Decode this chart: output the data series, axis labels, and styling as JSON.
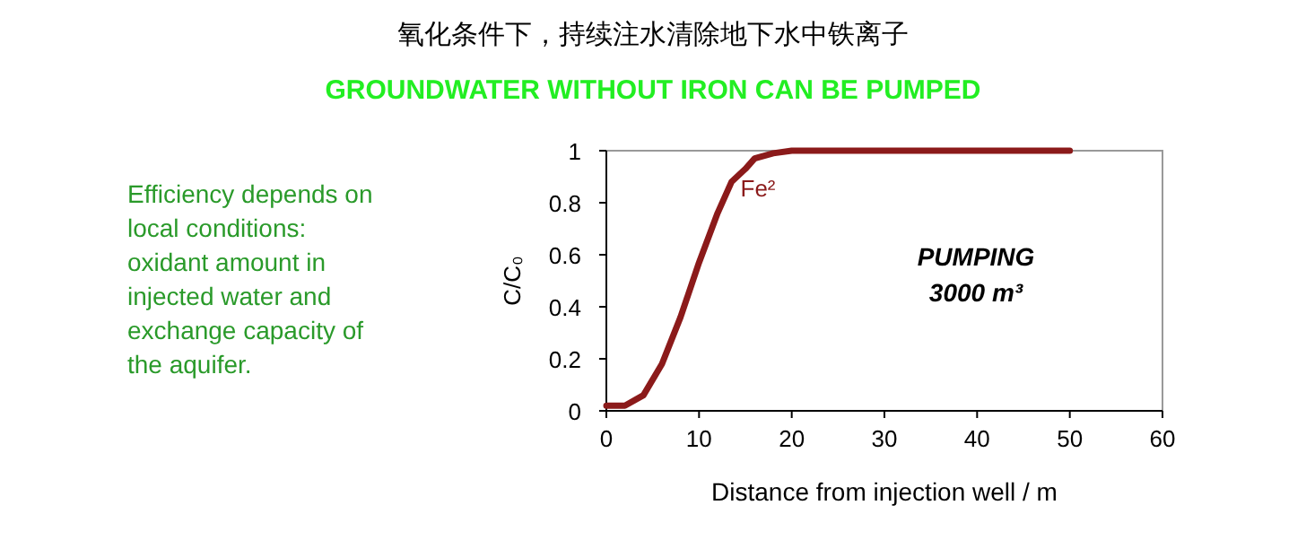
{
  "chart_data": {
    "type": "line",
    "title": "氧化条件下，持续注水清除地下水中铁离子",
    "subtitle": "GROUNDWATER WITHOUT IRON CAN BE PUMPED",
    "xlabel": "Distance from injection well / m",
    "ylabel": "C/C₀",
    "x": [
      0,
      2,
      4,
      6,
      8,
      10,
      12,
      13.5,
      15,
      16,
      18,
      20,
      30,
      40,
      50
    ],
    "series": [
      {
        "color": "#8b1a1a",
        "values": [
          0.02,
          0.02,
          0.06,
          0.18,
          0.36,
          0.57,
          0.76,
          0.88,
          0.93,
          0.97,
          0.99,
          1,
          1,
          1,
          1
        ]
      }
    ],
    "xlim": [
      0,
      60
    ],
    "xticks": [
      0,
      10,
      20,
      30,
      40,
      50,
      60
    ],
    "ylim": [
      0,
      1
    ],
    "yticks": [
      0,
      0.2,
      0.4,
      0.6,
      0.8,
      1
    ],
    "grid": false,
    "marker": "none",
    "line_style": "solid",
    "annotations": [
      {
        "text": "Fe²",
        "x": 13.5,
        "y": 0.88
      },
      "PUMPING\n3000 m³",
      "Efficiency depends on\nlocal conditions:\noxidant amount in\ninjected water and\nexchange capacity of\nthe aquifer."
    ]
  }
}
